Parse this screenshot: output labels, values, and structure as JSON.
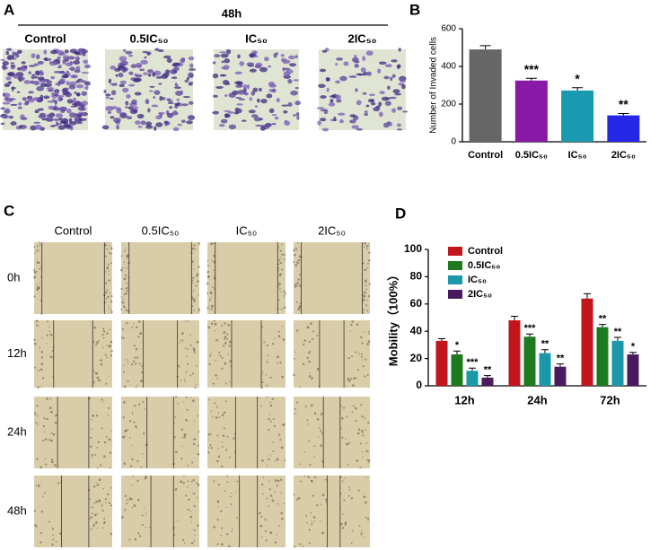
{
  "panels": {
    "A": {
      "letter": "A",
      "time": "48h",
      "columns": [
        "Control",
        "0.5IC₅₀",
        "IC₅₀",
        "2IC₅₀"
      ]
    },
    "B": {
      "letter": "B"
    },
    "C": {
      "letter": "C",
      "columns": [
        "Control",
        "0.5IC₅₀",
        "IC₅₀",
        "2IC₅₀"
      ],
      "rows": [
        "0h",
        "12h",
        "24h",
        "48h"
      ]
    },
    "D": {
      "letter": "D"
    }
  },
  "chart_data": [
    {
      "type": "bar",
      "ylabel": "Number of Invaded cells",
      "categories": [
        "Control",
        "0.5IC₅₀",
        "IC₅₀",
        "2IC₅₀"
      ],
      "values": [
        490,
        325,
        272,
        140
      ],
      "errors": [
        20,
        12,
        15,
        10
      ],
      "colors": [
        "#666666",
        "#8a18a6",
        "#1a9ab0",
        "#2626e6"
      ],
      "significance": [
        null,
        "***",
        "*",
        "**"
      ],
      "ylim": [
        0,
        600
      ],
      "yticks": [
        0,
        200,
        400,
        600
      ]
    },
    {
      "type": "grouped_bar",
      "ylabel": "Mobility（100%）",
      "categories": [
        "12h",
        "24h",
        "72h"
      ],
      "legend": "top-left",
      "series": [
        {
          "name": "Control",
          "color": "#c0161c",
          "values": [
            33,
            48,
            64
          ],
          "errors": [
            1.5,
            3,
            3.5
          ],
          "significance": [
            null,
            null,
            null
          ]
        },
        {
          "name": "0.5IC₅₀",
          "color": "#1e7a1e",
          "values": [
            23,
            36,
            43
          ],
          "errors": [
            2.5,
            2,
            2
          ],
          "significance": [
            "*",
            "***",
            "**"
          ]
        },
        {
          "name": "IC₅₀",
          "color": "#1a98a8",
          "values": [
            11,
            24,
            33
          ],
          "errors": [
            2,
            2.5,
            2.5
          ],
          "significance": [
            "***",
            "**",
            "**"
          ]
        },
        {
          "name": "2IC₅₀",
          "color": "#4a1a5e",
          "values": [
            6,
            14,
            23
          ],
          "errors": [
            1.5,
            2,
            1.5
          ],
          "significance": [
            "**",
            "**",
            "*"
          ]
        }
      ],
      "ylim": [
        0,
        100
      ],
      "yticks": [
        0,
        20,
        40,
        60,
        80,
        100
      ]
    }
  ]
}
